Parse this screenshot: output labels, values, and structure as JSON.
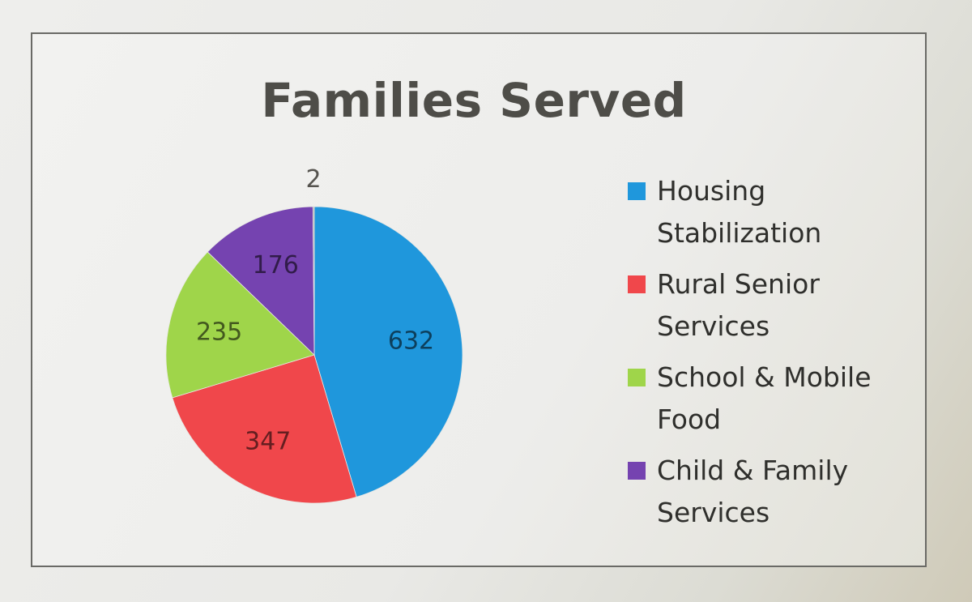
{
  "chart_data": {
    "type": "pie",
    "title": "Families Served",
    "legend_position": "right",
    "slices": [
      {
        "name": "Housing Stabilization",
        "legend_text": "Housing Stabilization",
        "value": 632,
        "label": "632",
        "color": "#1f97dc"
      },
      {
        "name": "Rural Senior Services",
        "legend_text": "Rural Senior Services",
        "value": 347,
        "label": "347",
        "color": "#f0474b"
      },
      {
        "name": "School & Mobile Food",
        "legend_text": "School & Mobile Food",
        "value": 235,
        "label": "235",
        "color": "#9fd54a"
      },
      {
        "name": "Child & Family Services",
        "legend_text": "Child & Family Services",
        "value": 176,
        "label": "176",
        "color": "#7543b0"
      },
      {
        "name": "",
        "legend_text": "",
        "value": 2,
        "label": "2",
        "color": "#9a9a9a"
      }
    ]
  }
}
